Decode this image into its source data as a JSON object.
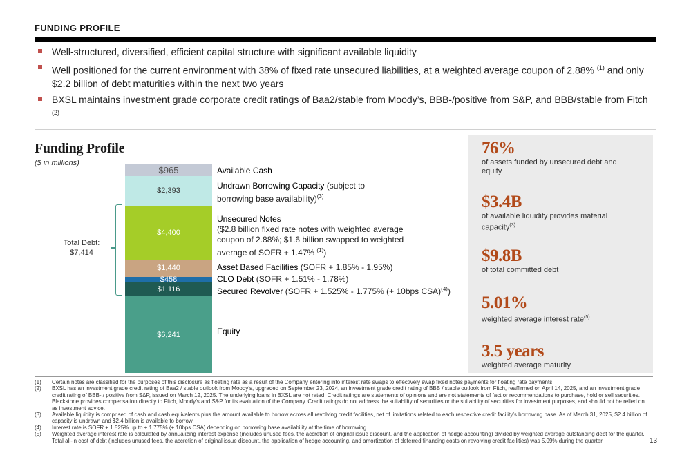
{
  "header": {
    "title": "FUNDING PROFILE"
  },
  "bullets": [
    {
      "text": "Well-structured, diversified, efficient capital structure with significant available liquidity",
      "sup": "",
      "tail": "",
      "sup2": ""
    },
    {
      "text": "Well positioned for the current environment with 38% of fixed rate unsecured liabilities, at a weighted average coupon of 2.88%",
      "sup": "(1)",
      "tail": " and only $2.2 billion of debt maturities within the next two years",
      "sup2": ""
    },
    {
      "text": "BXSL maintains investment grade corporate credit ratings of Baa2/stable from Moody’s, BBB-/positive from S&P, and BBB/stable from Fitch",
      "sup": "(2)",
      "tail": "",
      "sup2": ""
    }
  ],
  "chart": {
    "title": "Funding Profile",
    "subtitle": "($ in millions)",
    "total_debt_label": "Total Debt:",
    "total_debt_value": "$7,414"
  },
  "chart_data": {
    "type": "bar",
    "stacked": true,
    "unit": "$ in millions",
    "segments": [
      {
        "value": 965,
        "label": "$965",
        "name": "Available Cash",
        "detail": "",
        "sup": "",
        "color": "#c4cad6"
      },
      {
        "value": 2393,
        "label": "$2,393",
        "name": "Undrawn Borrowing Capacity",
        "detail": " (subject to borrowing base availability)",
        "sup": "(3)",
        "color": "#bfe9e6"
      },
      {
        "value": 4400,
        "label": "$4,400",
        "name": "Unsecured Notes",
        "detail": "($2.8 billion fixed rate notes with weighted average coupon of 2.88%; $1.6 billion swapped to weighted average of SOFR + 1.47%",
        "sup": "(1)",
        "detail_end": ")",
        "color": "#a5cd28"
      },
      {
        "value": 1440,
        "label": "$1,440",
        "name": "Asset Based Facilities",
        "detail": " (SOFR + 1.85% - 1.95%)",
        "sup": "",
        "color": "#c9a482"
      },
      {
        "value": 458,
        "label": "$458",
        "name": "CLO Debt",
        "detail": " (SOFR + 1.51% - 1.78%)",
        "sup": "",
        "color": "#1e6ea8"
      },
      {
        "value": 1116,
        "label": "$1,116",
        "name": "Secured Revolver",
        "detail": " (SOFR + 1.525% - 1.775% (+ 10bps CSA)",
        "sup": "(4)",
        "detail_end": ")",
        "color": "#1f5a52"
      },
      {
        "value": 6241,
        "label": "$6,241",
        "name": "Equity",
        "detail": "",
        "sup": "",
        "color": "#4a9f8a"
      }
    ]
  },
  "stats": [
    {
      "value": "76%",
      "desc": "of assets funded by unsecured debt and equity",
      "sup": ""
    },
    {
      "value": "$3.4B",
      "desc": "of available liquidity provides material capacity",
      "sup": "(3)"
    },
    {
      "value": "$9.8B",
      "desc": "of total committed debt",
      "sup": ""
    },
    {
      "value": "5.01%",
      "desc": "weighted average interest rate",
      "sup": "(5)"
    },
    {
      "value": "3.5 years",
      "desc": "weighted average maturity",
      "sup": ""
    }
  ],
  "footnotes": [
    {
      "num": "(1)",
      "text": "Certain notes are classified for the purposes of this disclosure as floating rate as a result of the Company entering into interest rate swaps to effectively swap fixed notes payments for floating rate payments."
    },
    {
      "num": "(2)",
      "text": "BXSL has an investment grade credit rating of Baa2 / stable outlook from Moody’s, upgraded on September 23, 2024,  an investment grade credit rating of BBB / stable outlook from Fitch, reaffirmed on April 14, 2025, and an investment grade credit rating of BBB- / positive from S&P, issued on March 12, 2025. The underlying loans in BXSL are not rated. Credit ratings are statements of opinions and are not statements of fact or recommendations to purchase, hold or sell securities. Blackstone provides compensation directly to Fitch, Moody’s and S&P for its evaluation of the Company. Credit ratings do not address the suitability of securities or the suitability of securities for investment purposes, and should not be relied on as investment advice."
    },
    {
      "num": "(3)",
      "text": "Available liquidity is comprised of cash and cash equivalents plus the amount available to borrow across all revolving credit facilities, net of limitations related to each respective credit facility’s borrowing base. As of March 31, 2025, $2.4 billion of capacity is undrawn and $2.4 billion is available to borrow."
    },
    {
      "num": "(4)",
      "text": "Interest rate is SOFR + 1.525% up to + 1.775% (+ 10bps CSA) depending on borrowing base availability at the time of borrowing."
    },
    {
      "num": "(5)",
      "text": "Weighted average interest rate is calculated by annualizing interest expense (includes unused fees, the accretion of original issue discount, and the application of hedge accounting) divided by weighted average outstanding debt for the quarter. Total all-in cost of debt (includes unused fees, the accretion of original issue discount, the application of hedge accounting, and amortization of deferred financing costs on revolving credit facilities) was 5.09% during the quarter."
    }
  ],
  "page_number": "13"
}
